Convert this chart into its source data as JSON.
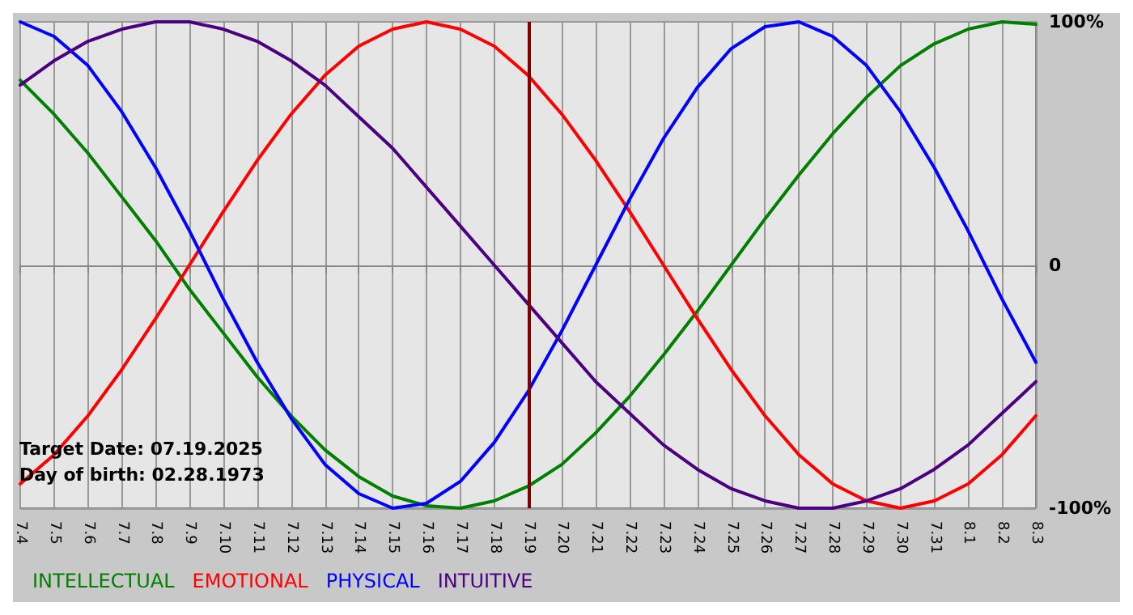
{
  "chart_data": {
    "type": "line",
    "categories": [
      "7.4",
      "7.5",
      "7.6",
      "7.7",
      "7.8",
      "7.9",
      "7.10",
      "7.11",
      "7.12",
      "7.13",
      "7.14",
      "7.15",
      "7.16",
      "7.17",
      "7.18",
      "7.19",
      "7.20",
      "7.21",
      "7.22",
      "7.23",
      "7.24",
      "7.25",
      "7.26",
      "7.27",
      "7.28",
      "7.29",
      "7.30",
      "7.31",
      "8.1",
      "8.2",
      "8.3"
    ],
    "series": [
      {
        "name": "INTELLECTUAL",
        "color": "#008000",
        "values": [
          76,
          62,
          46,
          28,
          10,
          -10,
          -28,
          -46,
          -62,
          -76,
          -87,
          -95,
          -99,
          -100,
          -97,
          -91,
          -82,
          -69,
          -54,
          -37,
          -19,
          0,
          19,
          37,
          54,
          69,
          82,
          91,
          97,
          100,
          99
        ]
      },
      {
        "name": "EMOTIONAL",
        "color": "#ff0000",
        "values": [
          -90,
          -78,
          -62,
          -43,
          -22,
          0,
          22,
          43,
          62,
          78,
          90,
          97,
          100,
          97,
          90,
          78,
          62,
          43,
          22,
          0,
          -22,
          -43,
          -62,
          -78,
          -90,
          -97,
          -100,
          -97,
          -90,
          -78,
          -62
        ]
      },
      {
        "name": "PHYSICAL",
        "color": "#0000ff",
        "values": [
          100,
          94,
          82,
          63,
          40,
          14,
          -14,
          -40,
          -63,
          -82,
          -94,
          -100,
          -98,
          -89,
          -73,
          -52,
          -27,
          0,
          27,
          52,
          73,
          89,
          98,
          100,
          94,
          82,
          63,
          40,
          14,
          -14,
          -40
        ]
      },
      {
        "name": "INTUITIVE",
        "color": "#4b0082",
        "values": [
          74,
          84,
          92,
          97,
          100,
          100,
          97,
          92,
          84,
          74,
          61,
          48,
          32,
          16,
          0,
          -16,
          -32,
          -48,
          -61,
          -74,
          -84,
          -92,
          -97,
          -100,
          -100,
          -97,
          -92,
          -84,
          -74,
          -61,
          -48
        ]
      }
    ],
    "ylim": [
      -100,
      100
    ],
    "yticks": [
      {
        "value": -100,
        "label": "-100%"
      },
      {
        "value": 0,
        "label": "0"
      },
      {
        "value": 100,
        "label": "100%"
      }
    ],
    "ref_lines": [
      {
        "axis": "x",
        "value": "7.19",
        "color": "#800000"
      }
    ],
    "annotations": [
      "Target Date: 07.19.2025",
      "Day of birth: 02.28.1973"
    ],
    "grid": true,
    "legend": "bottom left",
    "marker": "none",
    "line_style": "solid"
  }
}
